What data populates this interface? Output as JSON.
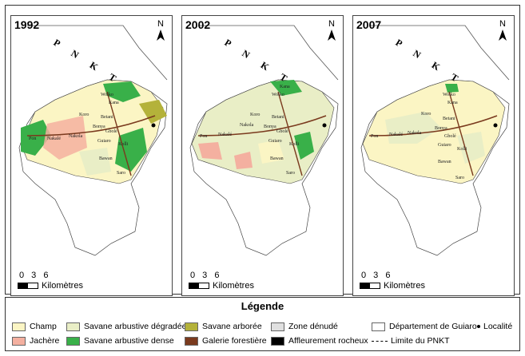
{
  "panels": [
    {
      "year": "1992",
      "north": "N",
      "region": "P N K T",
      "scale_numbers": "0 3 6",
      "scale_unit": "Kilomètres"
    },
    {
      "year": "2002",
      "north": "N",
      "region": "P N K T",
      "scale_numbers": "0 3 6",
      "scale_unit": "Kilomètres"
    },
    {
      "year": "2007",
      "north": "N",
      "region": "P N K T",
      "scale_numbers": "0 3 6",
      "scale_unit": "Kilomètres"
    }
  ],
  "localities": [
    "Wolko",
    "Kana",
    "Koro",
    "Betani",
    "Pon",
    "Nakalé",
    "Nakola",
    "Bonya",
    "Gbolé",
    "Guiaro",
    "Kolli",
    "Bawan",
    "Saro"
  ],
  "legend": {
    "title": "Légende",
    "items": [
      {
        "label": "Champ",
        "color": "#fbf5c4"
      },
      {
        "label": "Jachère",
        "color": "#f4b0a0"
      },
      {
        "label": "Savane arbustive dégradée",
        "color": "#e9eec6"
      },
      {
        "label": "Savane arbustive dense",
        "color": "#39b049"
      },
      {
        "label": "Savane arborée",
        "color": "#b4b23a"
      },
      {
        "label": "Galerie forestière",
        "color": "#7a3a1e"
      },
      {
        "label": "Zone dénudé",
        "color": "#e0e0e0"
      },
      {
        "label": "Affleurement rocheux",
        "color": "#000000"
      },
      {
        "label": "Département de Guiaro",
        "color": "#ffffff"
      },
      {
        "label": "Limite du PNKT",
        "color": "#000000"
      },
      {
        "label": "Localité",
        "color": "#000000"
      }
    ]
  }
}
